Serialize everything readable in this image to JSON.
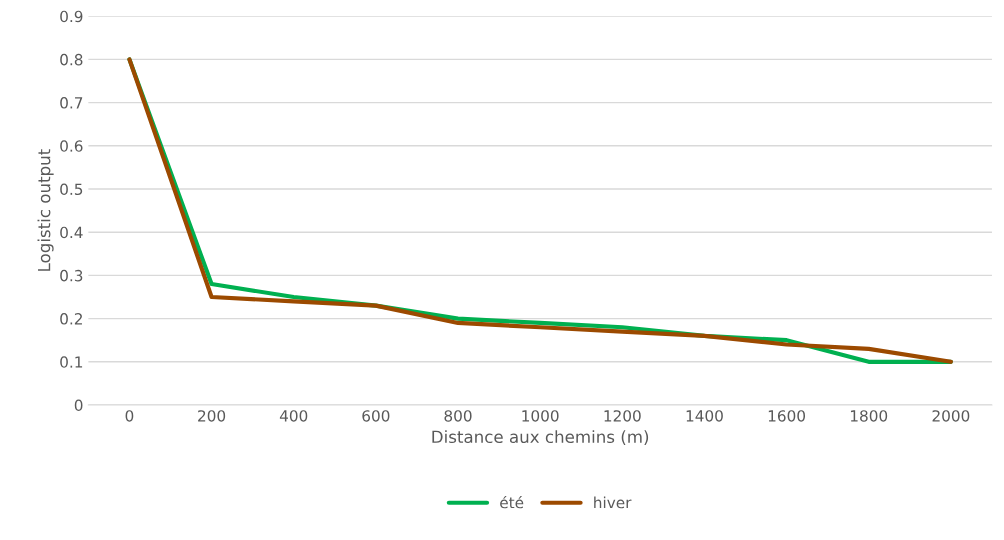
{
  "chart_data": {
    "type": "line",
    "xlabel": "Distance aux chemins (m)",
    "ylabel": "Logistic output",
    "categories": [
      "0",
      "200",
      "400",
      "600",
      "800",
      "1000",
      "1200",
      "1400",
      "1600",
      "1800",
      "2000"
    ],
    "series": [
      {
        "name": "été",
        "color": "#00b050",
        "values": [
          0.8,
          0.28,
          0.25,
          0.23,
          0.2,
          0.19,
          0.18,
          0.16,
          0.15,
          0.1,
          0.1
        ]
      },
      {
        "name": "hiver",
        "color": "#9c4a00",
        "values": [
          0.8,
          0.25,
          0.24,
          0.23,
          0.19,
          0.18,
          0.17,
          0.16,
          0.14,
          0.13,
          0.1
        ]
      }
    ],
    "ylim": [
      0,
      0.9
    ],
    "yticks": [
      0,
      0.1,
      0.2,
      0.3,
      0.4,
      0.5,
      0.6,
      0.7,
      0.8,
      0.9
    ],
    "grid": "y",
    "legend": "bottom",
    "marker": "none",
    "line_style": "solid"
  }
}
